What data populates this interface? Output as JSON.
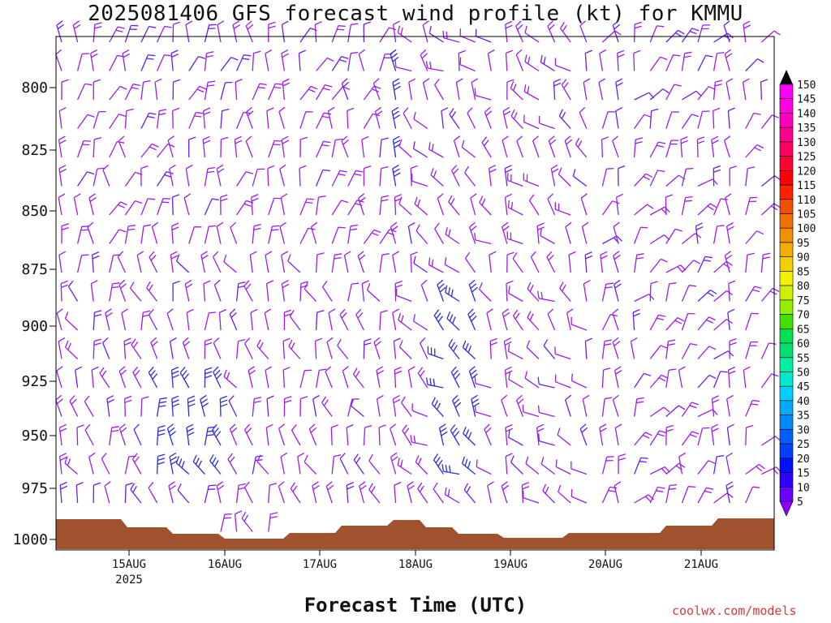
{
  "chart_data": {
    "type": "wind-barb profile",
    "title": "2025081406 GFS forecast wind profile (kt) for KMMU",
    "xlabel": "Forecast Time (UTC)",
    "ylabel": "",
    "credit": "coolwx.com/models",
    "y_axis": {
      "scale": "pressure (hPa)",
      "inverted": true,
      "range": [
        1007,
        780
      ],
      "ticks": [
        "800",
        "825",
        "850",
        "875",
        "900",
        "925",
        "950",
        "975",
        "1000"
      ]
    },
    "x_axis": {
      "range_days": [
        "2025-08-14 06Z",
        "2025-08-21 18Z"
      ],
      "ticks": [
        "15AUG",
        "16AUG",
        "17AUG",
        "18AUG",
        "19AUG",
        "20AUG",
        "21AUG"
      ],
      "year_label": "2025"
    },
    "colorbar": {
      "unit": "kt",
      "levels": [
        "5",
        "10",
        "15",
        "20",
        "25",
        "30",
        "35",
        "40",
        "45",
        "50",
        "55",
        "60",
        "65",
        "70",
        "75",
        "80",
        "85",
        "90",
        "95",
        "100",
        "105",
        "110",
        "115",
        "120",
        "125",
        "130",
        "135",
        "140",
        "145",
        "150"
      ],
      "colors": [
        "#8a00ff",
        "#6a00ff",
        "#2e00ff",
        "#0010ff",
        "#0040ff",
        "#0060ff",
        "#0088ff",
        "#00aaff",
        "#00d0ff",
        "#00e8d0",
        "#00f0a0",
        "#00e070",
        "#00e050",
        "#40e000",
        "#90f000",
        "#d0f000",
        "#f0f000",
        "#f0d000",
        "#f0b000",
        "#f09000",
        "#f07000",
        "#f05000",
        "#ff2000",
        "#ff0000",
        "#ff0030",
        "#ff0060",
        "#ff0090",
        "#ff00c0",
        "#ff00e0",
        "#ff00ff"
      ]
    },
    "terrain_color": "#a0522d",
    "barb_color_range": [
      "#9a1cf0",
      "#2b2be0"
    ],
    "grid": false,
    "legend": "colorbar right"
  }
}
